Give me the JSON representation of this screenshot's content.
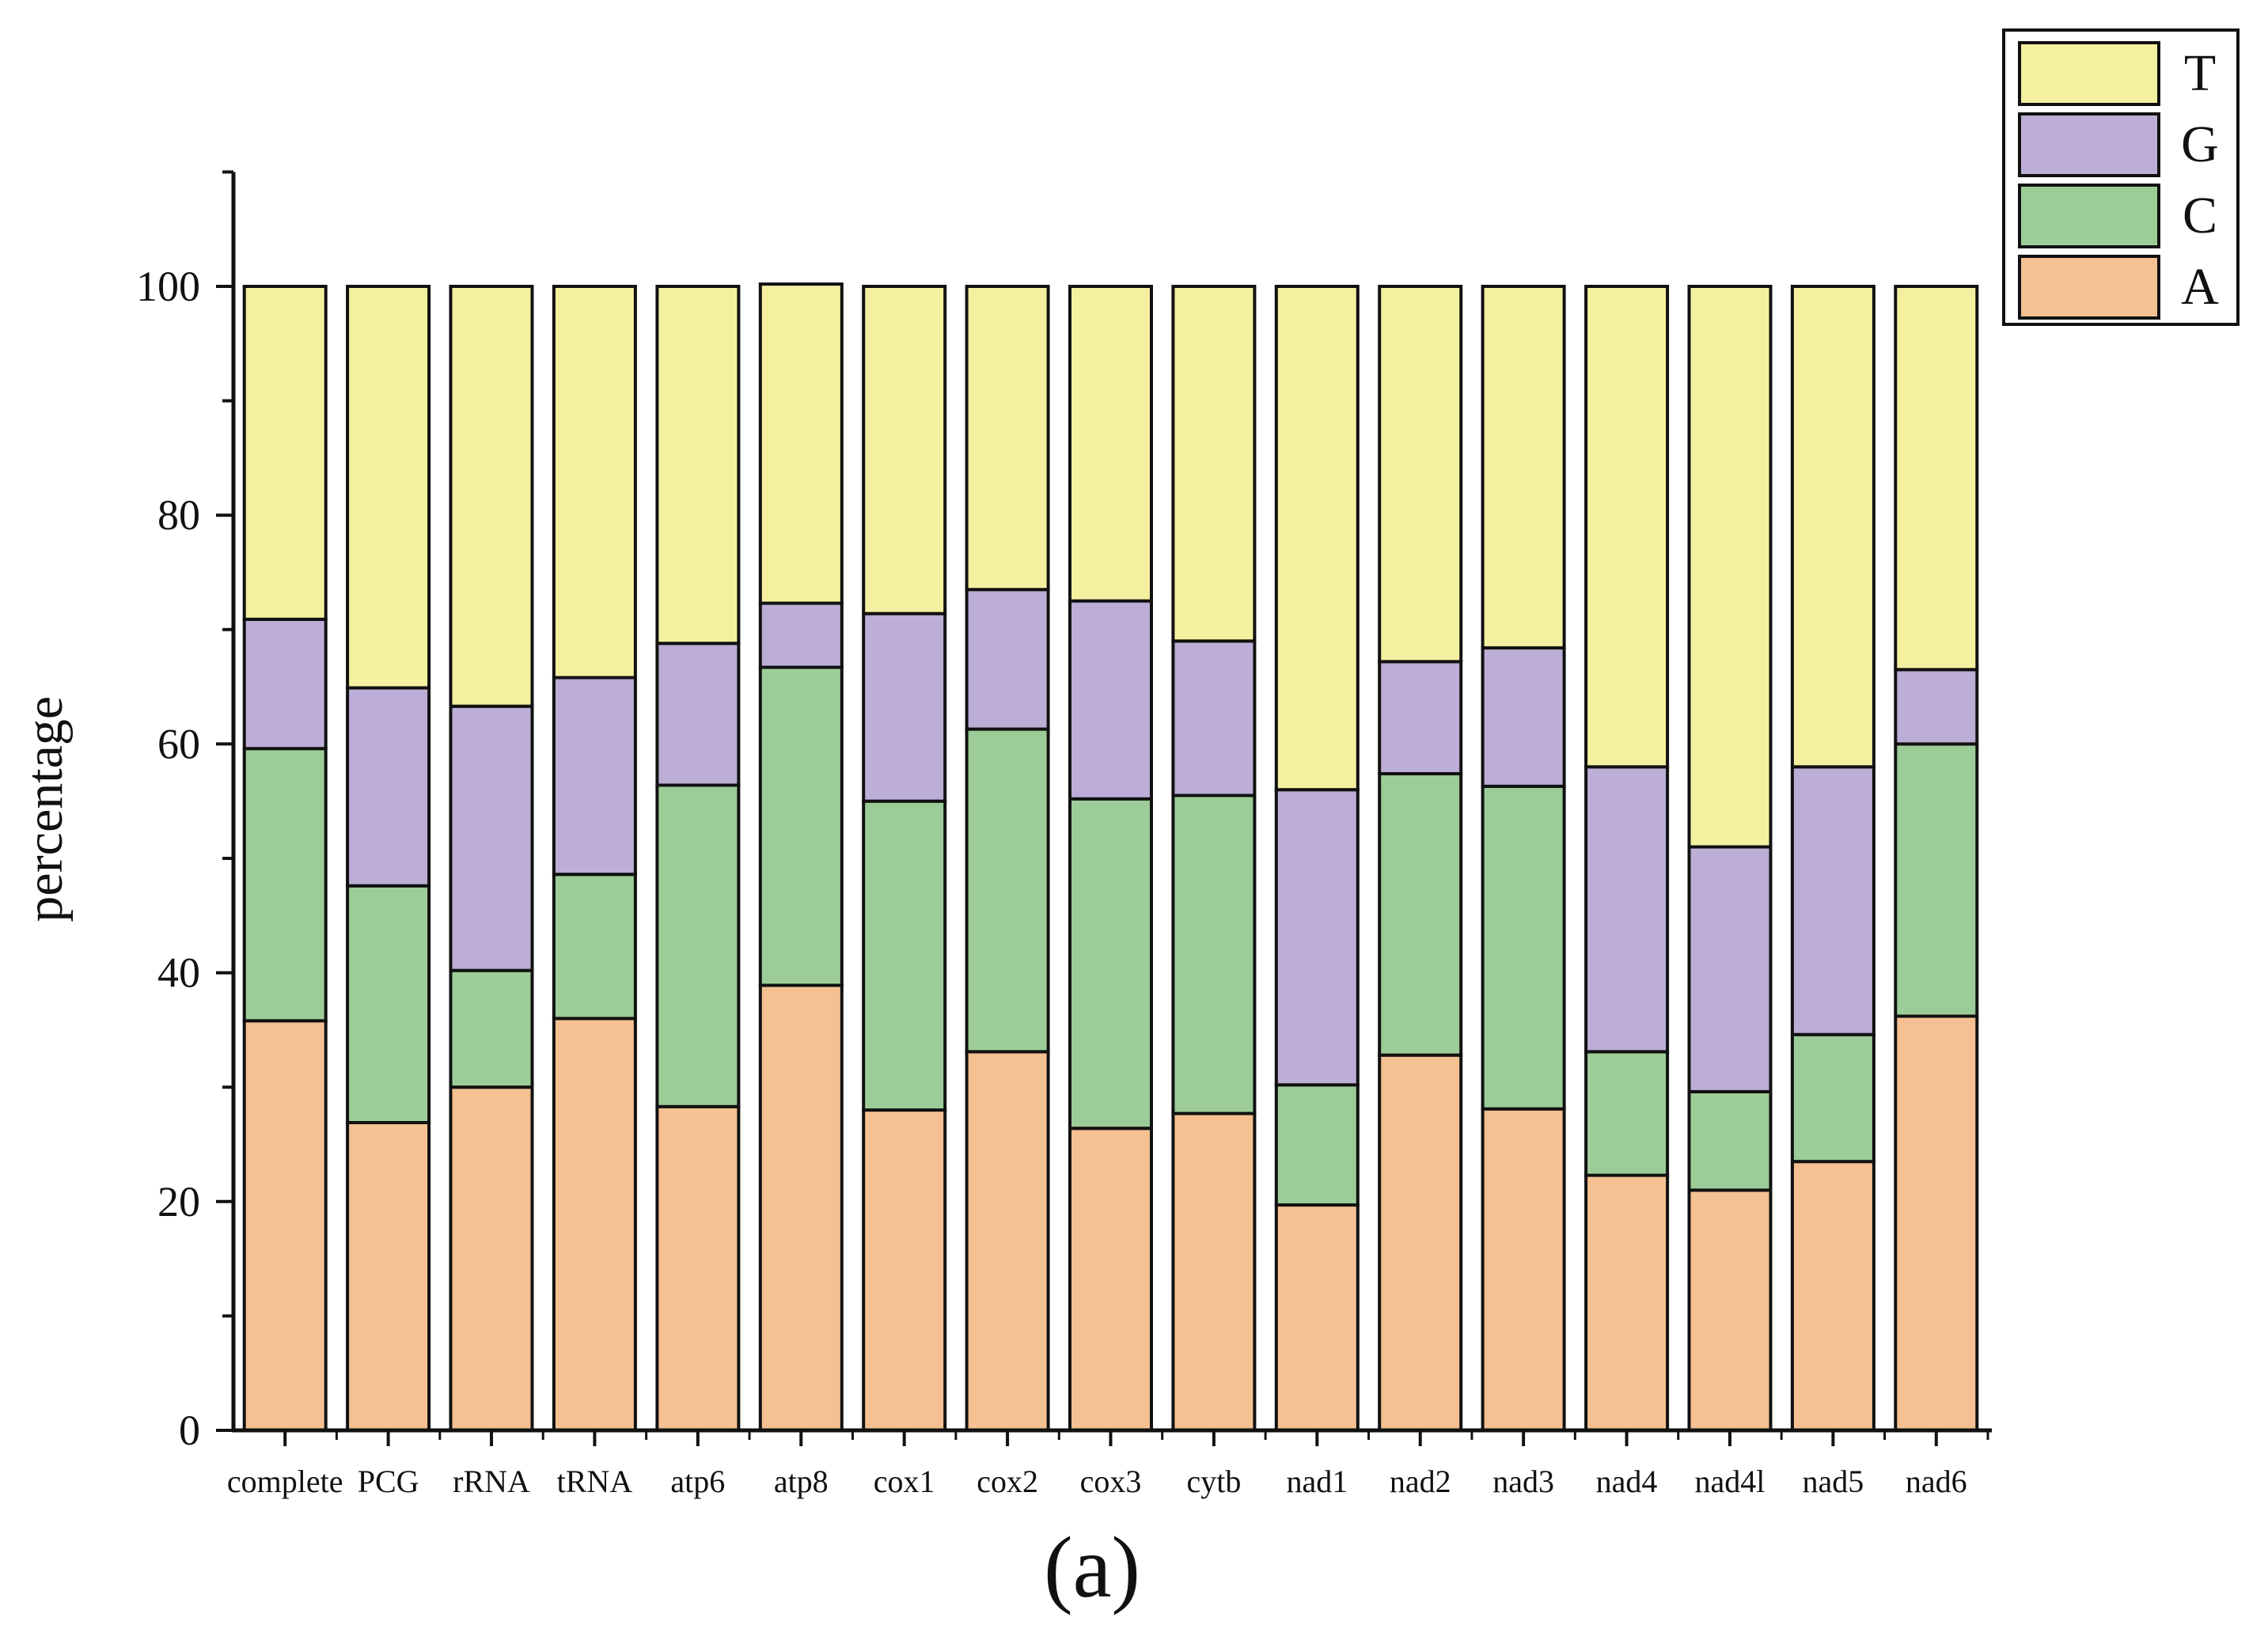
{
  "chart_data": {
    "type": "bar",
    "stacked": true,
    "title": "",
    "xlabel": "",
    "ylabel": "percentage",
    "ylim": [
      0,
      110
    ],
    "yticks": [
      "0",
      "20",
      "40",
      "60",
      "80",
      "100"
    ],
    "caption": "(a)",
    "legend_position": "top-right",
    "categories": [
      "complete",
      "PCG",
      "rRNA",
      "tRNA",
      "atp6",
      "atp8",
      "cox1",
      "cox2",
      "cox3",
      "cytb",
      "nad1",
      "nad2",
      "nad3",
      "nad4",
      "nad4l",
      "nad5",
      "nad6"
    ],
    "series": [
      {
        "name": "A",
        "color": "#f5c192",
        "values": [
          35.8,
          26.9,
          30.0,
          36.0,
          28.3,
          38.9,
          28.0,
          33.1,
          26.4,
          27.7,
          19.7,
          32.8,
          28.1,
          22.3,
          21.0,
          23.5,
          36.2
        ]
      },
      {
        "name": "C",
        "color": "#9ccd98",
        "values": [
          23.8,
          20.7,
          10.2,
          12.6,
          28.1,
          27.8,
          27.0,
          28.2,
          28.8,
          27.8,
          10.5,
          24.6,
          28.2,
          10.8,
          8.6,
          11.1,
          23.8
        ]
      },
      {
        "name": "G",
        "color": "#bcaed6",
        "values": [
          11.3,
          17.3,
          23.1,
          17.2,
          12.4,
          5.6,
          16.4,
          12.2,
          17.3,
          13.5,
          25.8,
          9.8,
          12.1,
          24.9,
          21.4,
          23.4,
          6.5
        ]
      },
      {
        "name": "T",
        "color": "#f5f0a0",
        "values": [
          29.1,
          35.1,
          36.7,
          34.2,
          31.2,
          27.9,
          28.6,
          26.5,
          27.5,
          31.0,
          44.0,
          32.8,
          31.6,
          42.0,
          49.0,
          42.0,
          33.5
        ]
      }
    ],
    "legend_order": [
      "T",
      "G",
      "C",
      "A"
    ]
  }
}
